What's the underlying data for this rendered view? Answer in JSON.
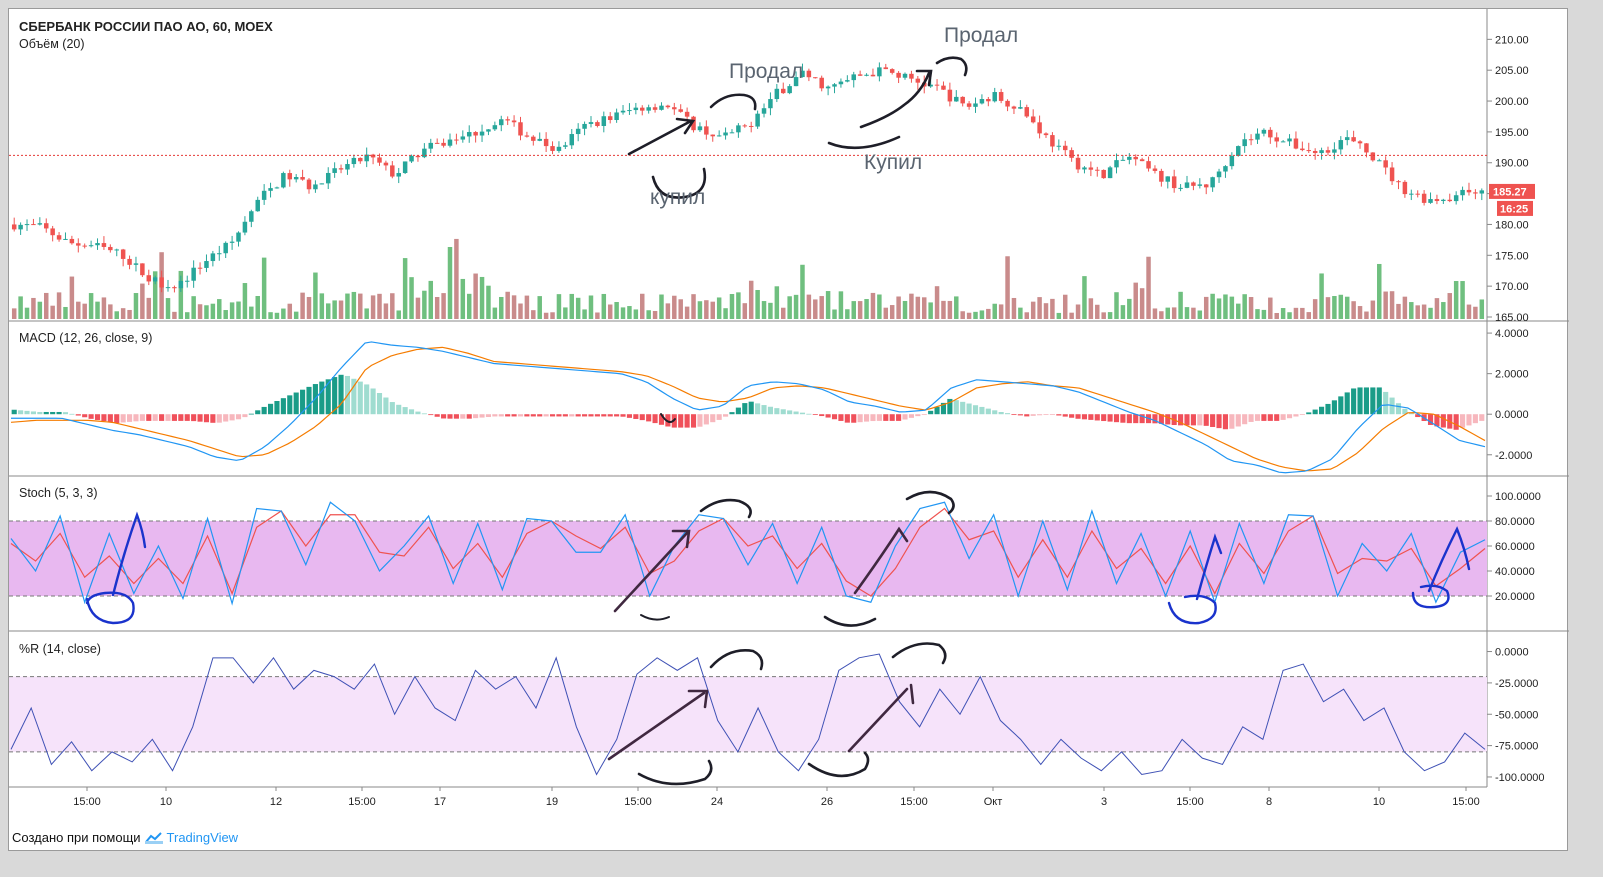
{
  "header": {
    "ticker": "СБЕРБАНК РОССИИ ПАО АО, 60, MOEX",
    "volume_label": "Объём (20)"
  },
  "footer": {
    "created_with": "Создано при помощи",
    "brand": "TradingView"
  },
  "colors": {
    "up": "#26a69a",
    "down": "#ef5350",
    "vol_up": "#6fbf7f",
    "vol_down": "#c98b8b",
    "macd_line": "#2196f3",
    "signal_line": "#f57c00",
    "stoch_band": "#e8b8f0",
    "wr_band": "#f6e3fa",
    "stoch_k": "#2196f3",
    "stoch_d": "#ef5350",
    "wr_line": "#3f51b5",
    "price_line": "#e53935"
  },
  "annotations": {
    "sold_1": "Продал",
    "sold_2": "Продал",
    "bought_1": "купил",
    "bought_2": "Купил"
  },
  "chart_data": [
    {
      "type": "candlestick",
      "title": "СБЕРБАНК РОССИИ ПАО АО, 60, MOEX",
      "ylim": [
        165,
        212
      ],
      "yticks": [
        "210.00",
        "205.00",
        "200.00",
        "195.00",
        "190.00",
        "185.00",
        "180.00",
        "175.00",
        "170.00",
        "165.00"
      ],
      "last_price": "185.27",
      "last_price_value": 185.27,
      "countdown": "16:25",
      "horizontal_line_value": 191.2,
      "close_anchors": [
        180,
        179.5,
        177,
        176.5,
        175,
        171,
        170,
        174,
        177,
        184,
        188,
        186,
        189,
        191,
        188,
        192,
        193.5,
        195,
        197,
        194,
        192,
        196,
        197.5,
        199,
        199.5,
        196,
        194,
        196,
        201,
        204.5,
        202,
        204,
        205,
        203.5,
        202,
        199,
        201,
        199,
        194,
        190,
        188,
        191,
        188,
        186,
        186.5,
        193,
        195,
        193,
        191.5,
        194,
        191,
        186,
        184,
        184.5,
        186
      ]
    },
    {
      "type": "bar",
      "title": "Объём (20)"
    },
    {
      "type": "line",
      "title": "MACD (12, 26, close, 9)",
      "ylim": [
        -2.8,
        4.3
      ],
      "yticks": [
        "4.0000",
        "2.0000",
        "0.0000",
        "-2.0000"
      ],
      "series": [
        {
          "name": "MACD",
          "values": [
            -0.2,
            -0.2,
            -0.2,
            -0.5,
            -0.8,
            -1,
            -1.3,
            -1.6,
            -2.1,
            -2.3,
            -1.6,
            -0.5,
            0.8,
            2.3,
            3.6,
            3.4,
            3.3,
            3.1,
            2.8,
            2.5,
            2.4,
            2.3,
            2.2,
            2.1,
            2.0,
            1.6,
            0.8,
            0.2,
            0.4,
            1.4,
            1.6,
            1.5,
            1.2,
            0.6,
            0.4,
            0.1,
            0.2,
            1.3,
            1.7,
            1.6,
            1.5,
            1.4,
            1.1,
            0.6,
            0.1,
            -0.3,
            -0.9,
            -1.5,
            -2.3,
            -2.5,
            -2.9,
            -2.8,
            -2.2,
            -0.7,
            0.5,
            0.3,
            -0.5,
            -1.3,
            -1.6
          ]
        },
        {
          "name": "Signal",
          "values": [
            -0.4,
            -0.3,
            -0.3,
            -0.3,
            -0.4,
            -0.7,
            -1,
            -1.3,
            -1.7,
            -2.1,
            -2.0,
            -1.4,
            -0.6,
            0.5,
            2.3,
            2.9,
            3.2,
            3.3,
            3.0,
            2.6,
            2.5,
            2.4,
            2.3,
            2.2,
            2.1,
            1.9,
            1.4,
            0.8,
            0.6,
            0.8,
            1.3,
            1.4,
            1.3,
            1.0,
            0.7,
            0.4,
            0.2,
            0.6,
            1.3,
            1.5,
            1.6,
            1.4,
            1.3,
            0.9,
            0.5,
            0.1,
            -0.4,
            -1.0,
            -1.6,
            -2.2,
            -2.6,
            -2.8,
            -2.7,
            -1.9,
            -0.7,
            0.1,
            0.0,
            -0.6,
            -1.3
          ]
        }
      ]
    },
    {
      "type": "line",
      "title": "Stoch (5, 3, 3)",
      "ylim": [
        0,
        100
      ],
      "yticks": [
        "100.0000",
        "80.0000",
        "60.0000",
        "40.0000",
        "20.0000"
      ],
      "upper_band": 80,
      "lower_band": 20,
      "series": [
        {
          "name": "%K",
          "values": [
            66,
            40,
            84,
            15,
            70,
            22,
            60,
            18,
            82,
            14,
            90,
            88,
            45,
            95,
            80,
            40,
            60,
            84,
            30,
            78,
            25,
            82,
            80,
            55,
            55,
            85,
            20,
            60,
            85,
            82,
            45,
            78,
            30,
            75,
            20,
            15,
            60,
            90,
            95,
            50,
            85,
            20,
            80,
            25,
            88,
            30,
            70,
            20,
            72,
            15,
            78,
            30,
            85,
            84,
            20,
            62,
            40,
            70,
            15,
            55,
            65
          ]
        },
        {
          "name": "%D",
          "values": [
            62,
            48,
            70,
            35,
            52,
            30,
            50,
            30,
            68,
            22,
            75,
            88,
            60,
            85,
            85,
            55,
            52,
            75,
            42,
            62,
            35,
            70,
            80,
            68,
            58,
            75,
            38,
            48,
            72,
            82,
            60,
            68,
            42,
            62,
            32,
            20,
            42,
            75,
            90,
            65,
            72,
            35,
            65,
            35,
            72,
            42,
            58,
            30,
            60,
            22,
            62,
            38,
            72,
            84,
            38,
            50,
            48,
            58,
            28,
            42,
            58
          ]
        }
      ]
    },
    {
      "type": "line",
      "title": "%R (14, close)",
      "ylim": [
        -108,
        10
      ],
      "yticks": [
        "0.0000",
        "-25.0000",
        "-50.0000",
        "-75.0000",
        "-100.0000"
      ],
      "upper_band": -20,
      "lower_band": -80,
      "series": [
        {
          "name": "%R",
          "values": [
            -78,
            -45,
            -90,
            -72,
            -95,
            -80,
            -88,
            -70,
            -95,
            -60,
            -5,
            -5,
            -25,
            -5,
            -30,
            -15,
            -20,
            -30,
            -10,
            -50,
            -20,
            -45,
            -55,
            -15,
            -30,
            -20,
            -45,
            -5,
            -60,
            -98,
            -70,
            -18,
            -5,
            -15,
            -5,
            -55,
            -80,
            -45,
            -80,
            -95,
            -70,
            -15,
            -5,
            -2,
            -40,
            -60,
            -30,
            -50,
            -20,
            -55,
            -70,
            -90,
            -70,
            -85,
            -95,
            -80,
            -98,
            -95,
            -70,
            -85,
            -90,
            -60,
            -70,
            -15,
            -10,
            -40,
            -30,
            -55,
            -45,
            -80,
            -95,
            -88,
            -65,
            -78
          ]
        }
      ]
    },
    {
      "type": "axis",
      "xticks": [
        "15:00",
        "10",
        "12",
        "15:00",
        "17",
        "19",
        "15:00",
        "24",
        "26",
        "15:00",
        "Окт",
        "3",
        "15:00",
        "8",
        "10",
        "15:00"
      ]
    }
  ]
}
